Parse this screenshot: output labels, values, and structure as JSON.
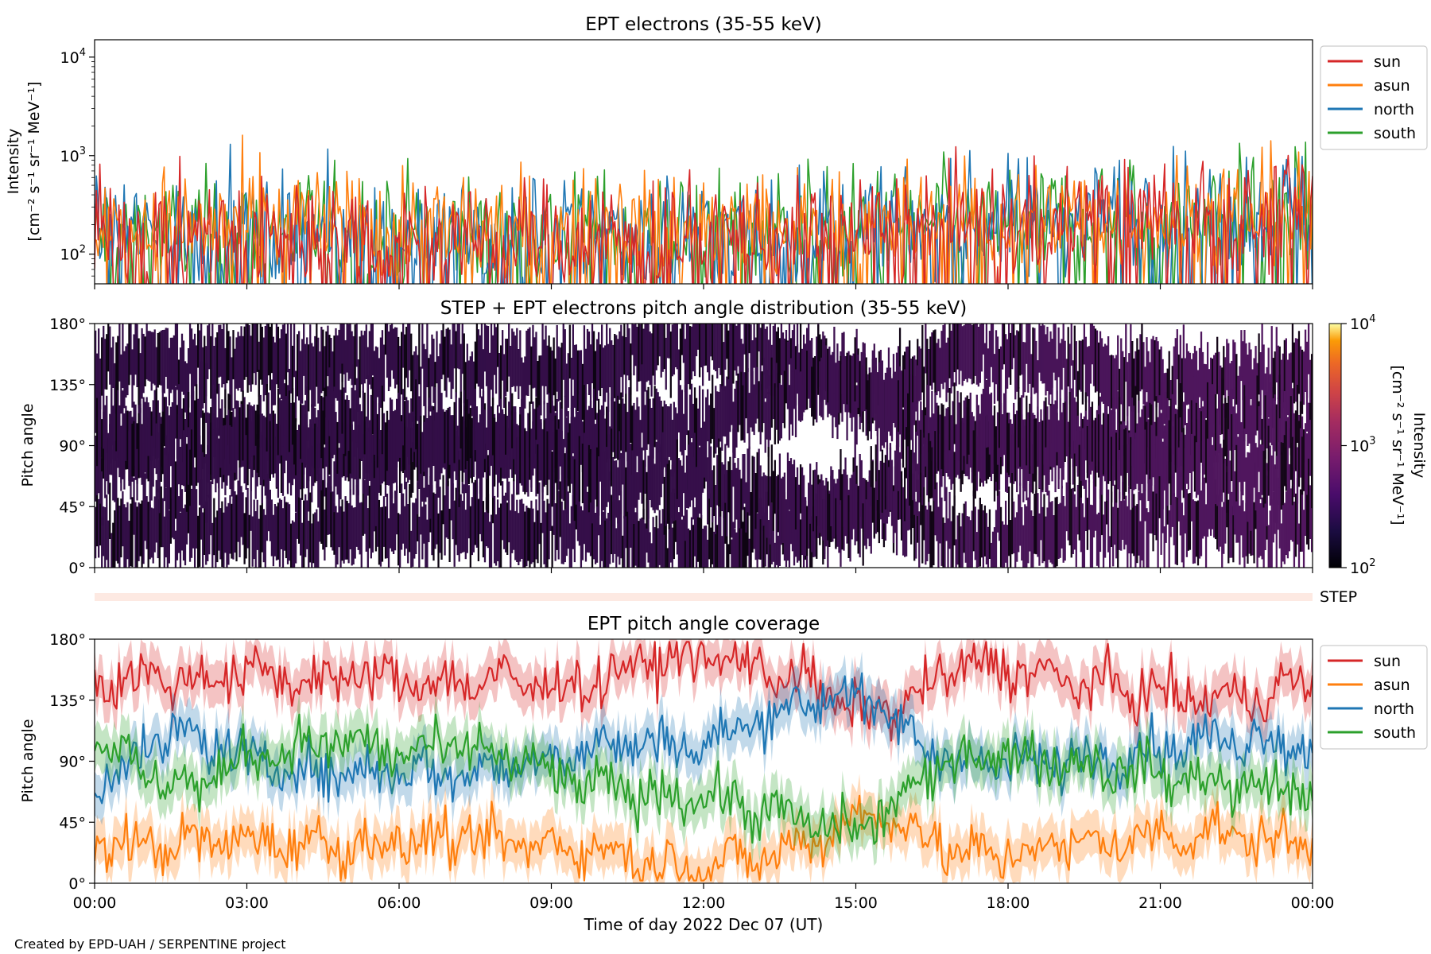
{
  "figure": {
    "credit": "Created by EPD-UAH / SERPENTINE project",
    "xlabel": "Time of day 2022 Dec 07 (UT)",
    "x_ticks": [
      "00:00",
      "03:00",
      "06:00",
      "09:00",
      "12:00",
      "15:00",
      "18:00",
      "21:00",
      "00:00"
    ]
  },
  "colors": {
    "sun": "#d62728",
    "asun": "#ff7f0e",
    "north": "#1f77b4",
    "south": "#2ca02c",
    "step_band": "#fde9e2"
  },
  "chart_data": [
    {
      "type": "line",
      "title": "EPT electrons (35-55 keV)",
      "ylabel": "Intensity",
      "yunit": "[cm⁻² s⁻¹ sr⁻¹ MeV⁻¹]",
      "yscale": "log",
      "ylim": [
        50,
        15000
      ],
      "yticks": [
        {
          "base": "10",
          "exp": "2"
        },
        {
          "base": "10",
          "exp": "3"
        },
        {
          "base": "10",
          "exp": "4"
        }
      ],
      "xlim_hours": [
        0,
        24
      ],
      "legend": "outside-right",
      "series": [
        {
          "name": "sun",
          "color": "#d62728",
          "hours": [
            0,
            2,
            4,
            6,
            8,
            10,
            12,
            14,
            16,
            18,
            20,
            22,
            24
          ],
          "median": [
            150,
            160,
            150,
            150,
            140,
            150,
            160,
            150,
            180,
            200,
            230,
            260,
            280
          ]
        },
        {
          "name": "asun",
          "color": "#ff7f0e",
          "hours": [
            0,
            2,
            4,
            6,
            8,
            10,
            12,
            14,
            16,
            18,
            20,
            22,
            24
          ],
          "median": [
            170,
            190,
            200,
            180,
            170,
            180,
            190,
            170,
            190,
            210,
            240,
            250,
            270
          ]
        },
        {
          "name": "north",
          "color": "#1f77b4",
          "hours": [
            0,
            2,
            4,
            6,
            8,
            10,
            12,
            14,
            16,
            18,
            20,
            22,
            24
          ],
          "median": [
            160,
            170,
            170,
            160,
            160,
            170,
            170,
            180,
            190,
            220,
            250,
            270,
            290
          ]
        },
        {
          "name": "south",
          "color": "#2ca02c",
          "hours": [
            0,
            2,
            4,
            6,
            8,
            10,
            12,
            14,
            16,
            18,
            20,
            22,
            24
          ],
          "median": [
            160,
            170,
            180,
            170,
            160,
            170,
            170,
            180,
            190,
            210,
            240,
            260,
            280
          ]
        }
      ]
    },
    {
      "type": "heatmap",
      "title": "STEP + EPT electrons pitch angle distribution (35-55 keV)",
      "ylabel": "Pitch angle",
      "ylim": [
        0,
        180
      ],
      "yticks": [
        "0°",
        "45°",
        "90°",
        "135°",
        "180°"
      ],
      "xlim_hours": [
        0,
        24
      ],
      "colorbar": {
        "label": "Intensity",
        "unit": "[cm⁻² s⁻¹ sr⁻¹ MeV⁻¹]",
        "scale": "log",
        "range": [
          100,
          10000
        ],
        "ticks": [
          {
            "base": "10",
            "exp": "2"
          },
          {
            "base": "10",
            "exp": "3"
          },
          {
            "base": "10",
            "exp": "4"
          }
        ],
        "colormap": "inferno"
      },
      "typical_intensity_by_hour": {
        "hours": [
          0,
          6,
          12,
          18,
          24
        ],
        "values": [
          150,
          150,
          160,
          220,
          280
        ]
      }
    },
    {
      "type": "band",
      "label": "STEP",
      "color": "#fde9e2"
    },
    {
      "type": "area",
      "title": "EPT pitch angle coverage",
      "ylabel": "Pitch angle",
      "ylim": [
        0,
        180
      ],
      "yticks": [
        "0°",
        "45°",
        "90°",
        "135°",
        "180°"
      ],
      "xlim_hours": [
        0,
        24
      ],
      "legend": "outside-right",
      "series": [
        {
          "name": "sun",
          "color": "#d62728",
          "hours": [
            0,
            1,
            2,
            3,
            4,
            5,
            6,
            7,
            8,
            9,
            10,
            11,
            12,
            13,
            14,
            15,
            16,
            17,
            18,
            19,
            20,
            21,
            22,
            23,
            24
          ],
          "values": [
            148,
            152,
            150,
            155,
            150,
            152,
            150,
            148,
            150,
            145,
            150,
            165,
            168,
            160,
            150,
            125,
            132,
            160,
            160,
            150,
            145,
            140,
            135,
            140,
            150
          ]
        },
        {
          "name": "asun",
          "color": "#ff7f0e",
          "hours": [
            0,
            1,
            2,
            3,
            4,
            5,
            6,
            7,
            8,
            9,
            10,
            11,
            12,
            13,
            14,
            15,
            16,
            17,
            18,
            19,
            20,
            21,
            22,
            23,
            24
          ],
          "values": [
            28,
            28,
            30,
            32,
            30,
            28,
            30,
            32,
            30,
            28,
            25,
            15,
            12,
            18,
            28,
            50,
            45,
            20,
            22,
            28,
            30,
            35,
            38,
            32,
            30
          ]
        },
        {
          "name": "north",
          "color": "#1f77b4",
          "hours": [
            0,
            1,
            2,
            3,
            4,
            5,
            6,
            7,
            8,
            9,
            10,
            11,
            12,
            13,
            14,
            15,
            16,
            17,
            18,
            19,
            20,
            21,
            22,
            23,
            24
          ],
          "values": [
            70,
            100,
            110,
            90,
            85,
            80,
            85,
            80,
            85,
            95,
            100,
            105,
            100,
            120,
            135,
            140,
            110,
            90,
            88,
            90,
            95,
            100,
            105,
            108,
            100
          ]
        },
        {
          "name": "south",
          "color": "#2ca02c",
          "hours": [
            0,
            1,
            2,
            3,
            4,
            5,
            6,
            7,
            8,
            9,
            10,
            11,
            12,
            13,
            14,
            15,
            16,
            17,
            18,
            19,
            20,
            21,
            22,
            23,
            24
          ],
          "values": [
            110,
            80,
            70,
            95,
            100,
            105,
            95,
            100,
            95,
            80,
            70,
            65,
            65,
            55,
            45,
            38,
            65,
            95,
            95,
            90,
            85,
            80,
            75,
            70,
            70
          ]
        }
      ]
    }
  ]
}
